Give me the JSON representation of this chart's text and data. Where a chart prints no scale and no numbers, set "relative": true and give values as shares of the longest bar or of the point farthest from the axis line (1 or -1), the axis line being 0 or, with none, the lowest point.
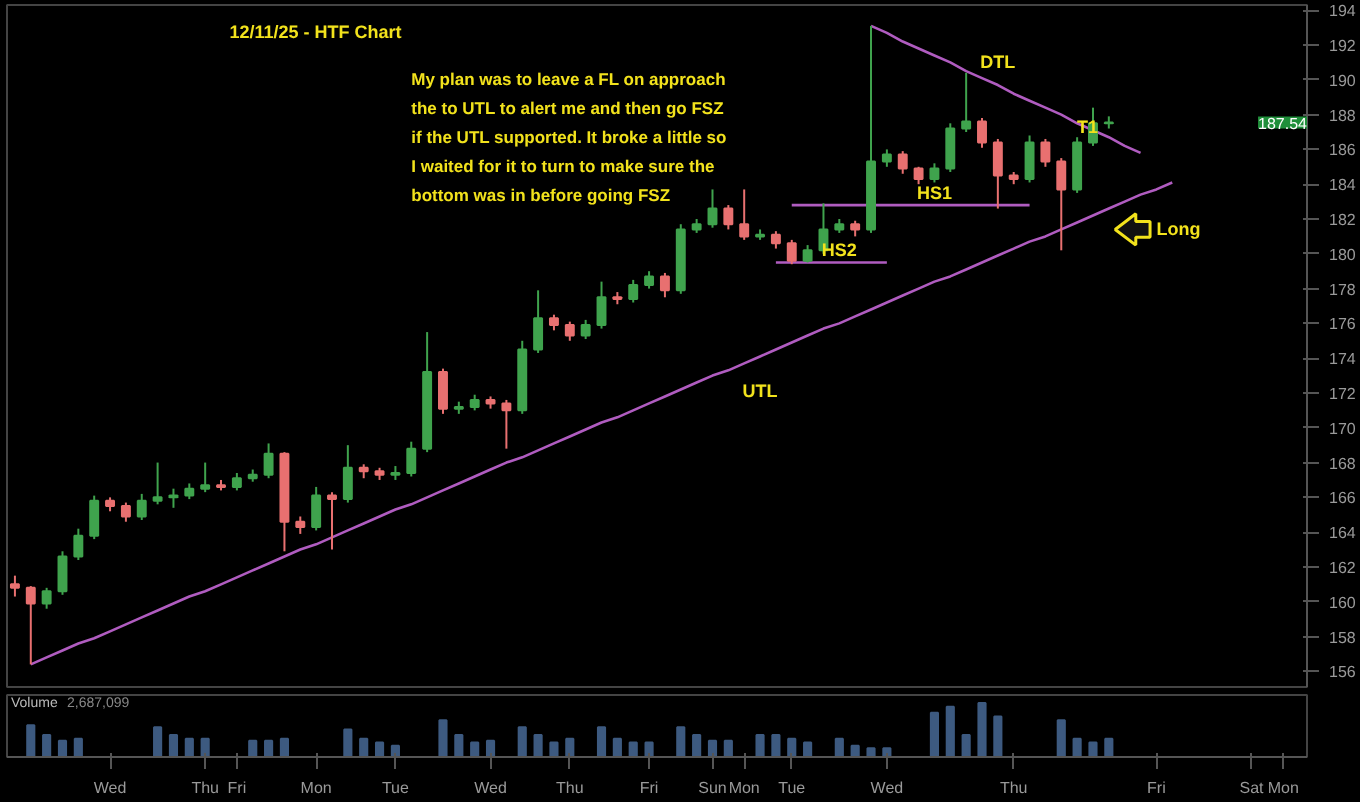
{
  "chart_data": [
    {
      "type": "candlestick",
      "title": "12/11/25 - HTF Chart",
      "categories": [
        null,
        null,
        null,
        null,
        null,
        null,
        null,
        null,
        null,
        null,
        null,
        null,
        null,
        null,
        null,
        null,
        null,
        null,
        null,
        null,
        null,
        null,
        null,
        null,
        null,
        null,
        null,
        null,
        null,
        null,
        null,
        null,
        null,
        null,
        null,
        null,
        null,
        null,
        null,
        null,
        null,
        null,
        null,
        null,
        null,
        null,
        null,
        null,
        null,
        null,
        null,
        null,
        null,
        null,
        null,
        null,
        null,
        null,
        null,
        null,
        null,
        null,
        null,
        null,
        null,
        null,
        null,
        null,
        null,
        null,
        null,
        null,
        null,
        null,
        null,
        null,
        null,
        null,
        null,
        null,
        null,
        null
      ],
      "ohlc": [
        [
          161.0,
          161.5,
          160.3,
          160.8
        ],
        [
          160.8,
          160.9,
          156.4,
          159.9
        ],
        [
          159.9,
          160.8,
          159.6,
          160.6
        ],
        [
          160.6,
          162.9,
          160.4,
          162.6
        ],
        [
          162.6,
          164.2,
          162.4,
          163.8
        ],
        [
          163.8,
          166.1,
          163.6,
          165.8
        ],
        [
          165.8,
          166.0,
          165.2,
          165.5
        ],
        [
          165.5,
          165.7,
          164.6,
          164.9
        ],
        [
          164.9,
          166.2,
          164.7,
          165.8
        ],
        [
          165.8,
          168.0,
          165.6,
          166.0
        ],
        [
          166.0,
          166.5,
          165.4,
          166.1
        ],
        [
          166.1,
          166.8,
          165.9,
          166.5
        ],
        [
          166.5,
          168.0,
          166.3,
          166.7
        ],
        [
          166.7,
          167.0,
          166.4,
          166.6
        ],
        [
          166.6,
          167.4,
          166.4,
          167.1
        ],
        [
          167.1,
          167.6,
          166.9,
          167.3
        ],
        [
          167.3,
          169.1,
          167.1,
          168.5
        ],
        [
          168.5,
          168.6,
          162.9,
          164.6
        ],
        [
          164.6,
          164.9,
          163.9,
          164.3
        ],
        [
          164.3,
          166.6,
          164.1,
          166.1
        ],
        [
          166.1,
          166.3,
          163.0,
          165.9
        ],
        [
          165.9,
          169.0,
          165.7,
          167.7
        ],
        [
          167.7,
          167.9,
          167.1,
          167.5
        ],
        [
          167.5,
          167.7,
          167.0,
          167.3
        ],
        [
          167.3,
          167.8,
          167.0,
          167.4
        ],
        [
          167.4,
          169.2,
          167.2,
          168.8
        ],
        [
          168.8,
          175.5,
          168.6,
          173.2
        ],
        [
          173.2,
          173.4,
          170.8,
          171.1
        ],
        [
          171.1,
          171.5,
          170.8,
          171.2
        ],
        [
          171.2,
          171.9,
          171.0,
          171.6
        ],
        [
          171.6,
          171.8,
          171.1,
          171.4
        ],
        [
          171.4,
          171.6,
          168.8,
          171.0
        ],
        [
          171.0,
          175.0,
          170.8,
          174.5
        ],
        [
          174.5,
          177.9,
          174.3,
          176.3
        ],
        [
          176.3,
          176.5,
          175.6,
          175.9
        ],
        [
          175.9,
          176.1,
          175.0,
          175.3
        ],
        [
          175.3,
          176.2,
          175.1,
          175.9
        ],
        [
          175.9,
          178.4,
          175.7,
          177.5
        ],
        [
          177.5,
          177.8,
          177.1,
          177.4
        ],
        [
          177.4,
          178.5,
          177.2,
          178.2
        ],
        [
          178.2,
          179.0,
          178.0,
          178.7
        ],
        [
          178.7,
          178.9,
          177.5,
          177.9
        ],
        [
          177.9,
          181.7,
          177.7,
          181.4
        ],
        [
          181.4,
          182.0,
          181.2,
          181.7
        ],
        [
          181.7,
          183.7,
          181.5,
          182.6
        ],
        [
          182.6,
          182.8,
          181.4,
          181.7
        ],
        [
          181.7,
          183.7,
          180.8,
          181.0
        ],
        [
          181.0,
          181.4,
          180.8,
          181.1
        ],
        [
          181.1,
          181.3,
          180.3,
          180.6
        ],
        [
          180.6,
          180.8,
          179.4,
          179.6
        ],
        [
          179.6,
          180.5,
          179.5,
          180.2
        ],
        [
          180.2,
          182.9,
          180.0,
          181.4
        ],
        [
          181.4,
          182.0,
          181.2,
          181.7
        ],
        [
          181.7,
          181.9,
          181.0,
          181.4
        ],
        [
          181.4,
          193.1,
          181.2,
          185.3
        ],
        [
          185.3,
          186.0,
          185.0,
          185.7
        ],
        [
          185.7,
          185.9,
          184.6,
          184.9
        ],
        [
          184.9,
          185.0,
          184.0,
          184.3
        ],
        [
          184.3,
          185.2,
          184.1,
          184.9
        ],
        [
          184.9,
          187.5,
          184.7,
          187.2
        ],
        [
          187.2,
          190.4,
          187.0,
          187.6
        ],
        [
          187.6,
          187.8,
          186.1,
          186.4
        ],
        [
          186.4,
          186.6,
          182.6,
          184.5
        ],
        [
          184.5,
          184.7,
          184.0,
          184.3
        ],
        [
          184.3,
          186.8,
          184.1,
          186.4
        ],
        [
          186.4,
          186.6,
          185.0,
          185.3
        ],
        [
          185.3,
          185.5,
          180.2,
          183.7
        ],
        [
          183.7,
          186.7,
          183.5,
          186.4
        ],
        [
          186.4,
          188.4,
          186.2,
          187.5
        ],
        [
          187.5,
          187.9,
          187.2,
          187.54
        ],
        null,
        null,
        null,
        null,
        null,
        null,
        null,
        null,
        null,
        null,
        null,
        null
      ],
      "series": [
        {
          "type": "line",
          "name": "UTL",
          "color": "#b05cc0",
          "values": [
            null,
            156.4,
            156.8,
            157.2,
            157.6,
            157.9,
            158.3,
            158.7,
            159.1,
            159.5,
            159.9,
            160.3,
            160.6,
            161.0,
            161.4,
            161.8,
            162.2,
            162.6,
            163.0,
            163.3,
            163.7,
            164.1,
            164.5,
            164.9,
            165.3,
            165.6,
            166.0,
            166.4,
            166.8,
            167.2,
            167.6,
            168.0,
            168.3,
            168.7,
            169.1,
            169.5,
            169.9,
            170.3,
            170.6,
            171.0,
            171.4,
            171.8,
            172.2,
            172.6,
            173.0,
            173.3,
            173.7,
            174.1,
            174.5,
            174.9,
            175.3,
            175.7,
            176.0,
            176.4,
            176.8,
            177.2,
            177.6,
            178.0,
            178.4,
            178.7,
            179.1,
            179.5,
            179.9,
            180.3,
            180.7,
            181.0,
            181.4,
            181.8,
            182.2,
            182.6,
            183.0,
            183.4,
            183.7,
            184.1,
            null,
            null,
            null,
            null,
            null,
            null,
            null,
            null
          ]
        },
        {
          "type": "line",
          "name": "DTL",
          "color": "#b05cc0",
          "values": [
            null,
            null,
            null,
            null,
            null,
            null,
            null,
            null,
            null,
            null,
            null,
            null,
            null,
            null,
            null,
            null,
            null,
            null,
            null,
            null,
            null,
            null,
            null,
            null,
            null,
            null,
            null,
            null,
            null,
            null,
            null,
            null,
            null,
            null,
            null,
            null,
            null,
            null,
            null,
            null,
            null,
            null,
            null,
            null,
            null,
            null,
            null,
            null,
            null,
            null,
            null,
            null,
            null,
            null,
            193.1,
            192.7,
            192.2,
            191.8,
            191.4,
            191.0,
            190.5,
            190.1,
            189.7,
            189.2,
            188.8,
            188.4,
            188.0,
            187.5,
            187.1,
            186.7,
            186.2,
            185.8,
            null,
            null,
            null,
            null,
            null,
            null,
            null,
            null,
            null,
            null
          ]
        },
        {
          "type": "line",
          "name": "HS1",
          "color": "#b05cc0",
          "values": [
            null,
            null,
            null,
            null,
            null,
            null,
            null,
            null,
            null,
            null,
            null,
            null,
            null,
            null,
            null,
            null,
            null,
            null,
            null,
            null,
            null,
            null,
            null,
            null,
            null,
            null,
            null,
            null,
            null,
            null,
            null,
            null,
            null,
            null,
            null,
            null,
            null,
            null,
            null,
            null,
            null,
            null,
            null,
            null,
            null,
            null,
            null,
            null,
            null,
            182.8,
            182.8,
            182.8,
            182.8,
            182.8,
            182.8,
            182.8,
            182.8,
            182.8,
            182.8,
            182.8,
            182.8,
            182.8,
            182.8,
            182.8,
            182.8,
            null,
            null,
            null,
            null,
            null,
            null,
            null,
            null,
            null,
            null,
            null,
            null,
            null,
            null,
            null,
            null,
            null
          ]
        },
        {
          "type": "line",
          "name": "HS2",
          "color": "#b05cc0",
          "values": [
            null,
            null,
            null,
            null,
            null,
            null,
            null,
            null,
            null,
            null,
            null,
            null,
            null,
            null,
            null,
            null,
            null,
            null,
            null,
            null,
            null,
            null,
            null,
            null,
            null,
            null,
            null,
            null,
            null,
            null,
            null,
            null,
            null,
            null,
            null,
            null,
            null,
            null,
            null,
            null,
            null,
            null,
            null,
            null,
            null,
            null,
            null,
            null,
            179.5,
            179.5,
            179.5,
            179.5,
            179.5,
            179.5,
            179.5,
            179.5,
            null,
            null,
            null,
            null,
            null,
            null,
            null,
            null,
            null,
            null,
            null,
            null,
            null,
            null,
            null,
            null,
            null,
            null,
            null,
            null,
            null,
            null,
            null,
            null,
            null,
            null
          ]
        }
      ],
      "annotations": [
        "My plan was to leave a FL on approach\nthe to UTL to alert me and then go FSZ\nif the UTL supported. It broke a little so\nI waited for it to turn to make sure the\nbottom was in before going FSZ",
        "T1",
        "Long",
        "187.54"
      ],
      "ylim": [
        155.1,
        194.3
      ],
      "yticks": [
        156,
        158,
        160,
        162,
        164,
        166,
        168,
        170,
        172,
        174,
        176,
        178,
        180,
        182,
        184,
        186,
        188,
        190,
        192,
        194
      ],
      "tick_labels": "y",
      "grid": false
    },
    {
      "type": "bar",
      "title": "Volume",
      "relative": true,
      "color": "#3d5a80",
      "categories": [
        null,
        null,
        null,
        null,
        null,
        null,
        "Wed",
        null,
        null,
        null,
        null,
        null,
        "Thu",
        null,
        "Fri",
        null,
        null,
        null,
        null,
        "Mon",
        null,
        null,
        null,
        null,
        "Tue",
        null,
        null,
        null,
        null,
        null,
        "Wed",
        null,
        null,
        null,
        null,
        "Thu",
        null,
        null,
        null,
        null,
        "Fri",
        null,
        null,
        null,
        "Sun",
        null,
        "Mon",
        null,
        null,
        "Tue",
        null,
        null,
        null,
        null,
        null,
        "Wed",
        null,
        null,
        null,
        null,
        null,
        null,
        null,
        "Thu",
        null,
        null,
        null,
        null,
        null,
        null,
        null,
        null,
        "Fri",
        null,
        null,
        null,
        null,
        null,
        "Sat",
        null,
        "Mon",
        null
      ],
      "values": [
        null,
        0.59,
        0.41,
        0.3,
        0.34,
        null,
        null,
        null,
        null,
        0.55,
        0.41,
        0.34,
        0.34,
        null,
        null,
        0.3,
        0.3,
        0.34,
        null,
        null,
        null,
        0.51,
        0.34,
        0.27,
        0.21,
        null,
        null,
        0.68,
        0.41,
        0.27,
        0.3,
        null,
        0.55,
        0.41,
        0.27,
        0.34,
        null,
        0.55,
        0.34,
        0.27,
        0.27,
        null,
        0.55,
        0.41,
        0.3,
        0.3,
        null,
        0.41,
        0.41,
        0.34,
        0.27,
        null,
        0.34,
        0.21,
        0.16,
        0.16,
        null,
        null,
        0.82,
        0.93,
        0.41,
        1.0,
        0.75,
        null,
        null,
        null,
        0.68,
        0.34,
        0.27,
        0.34,
        null,
        null,
        null,
        null,
        null,
        null,
        null,
        null,
        null,
        null,
        null,
        null
      ],
      "annotations": [
        "2,687,099"
      ],
      "tick_labels": "x",
      "grid": false
    }
  ]
}
